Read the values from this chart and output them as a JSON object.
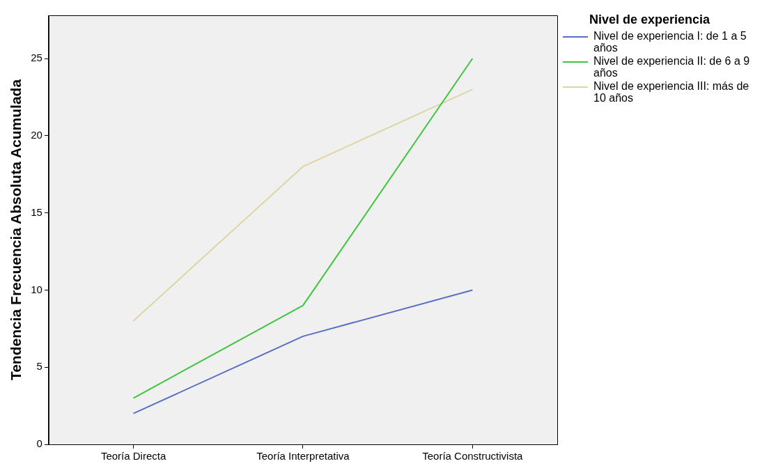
{
  "chart_data": {
    "type": "line",
    "ylabel": "Tendencia Frecuencia Absoluta Acumulada",
    "legend_title": "Nivel de experiencia",
    "categories": [
      "Teoría Directa",
      "Teoría Interpretativa",
      "Teoría Constructivista"
    ],
    "series": [
      {
        "name": "Nivel de experiencia I:  de 1 a 5 años",
        "color": "#5a6ec4",
        "values": [
          2,
          7,
          10
        ]
      },
      {
        "name": "Nivel de experiencia II: de 6 a 9 años",
        "color": "#3ec43e",
        "values": [
          3,
          9,
          25
        ]
      },
      {
        "name": "Nivel de experiencia III: más de 10 años",
        "color": "#dcd6a2",
        "values": [
          8,
          18,
          23
        ]
      }
    ],
    "ylim": [
      0,
      27.8
    ],
    "yticks": [
      0,
      5,
      10,
      15,
      20,
      25
    ],
    "grid": false,
    "legend": "top right",
    "marker": "none",
    "line_style": "solid"
  }
}
